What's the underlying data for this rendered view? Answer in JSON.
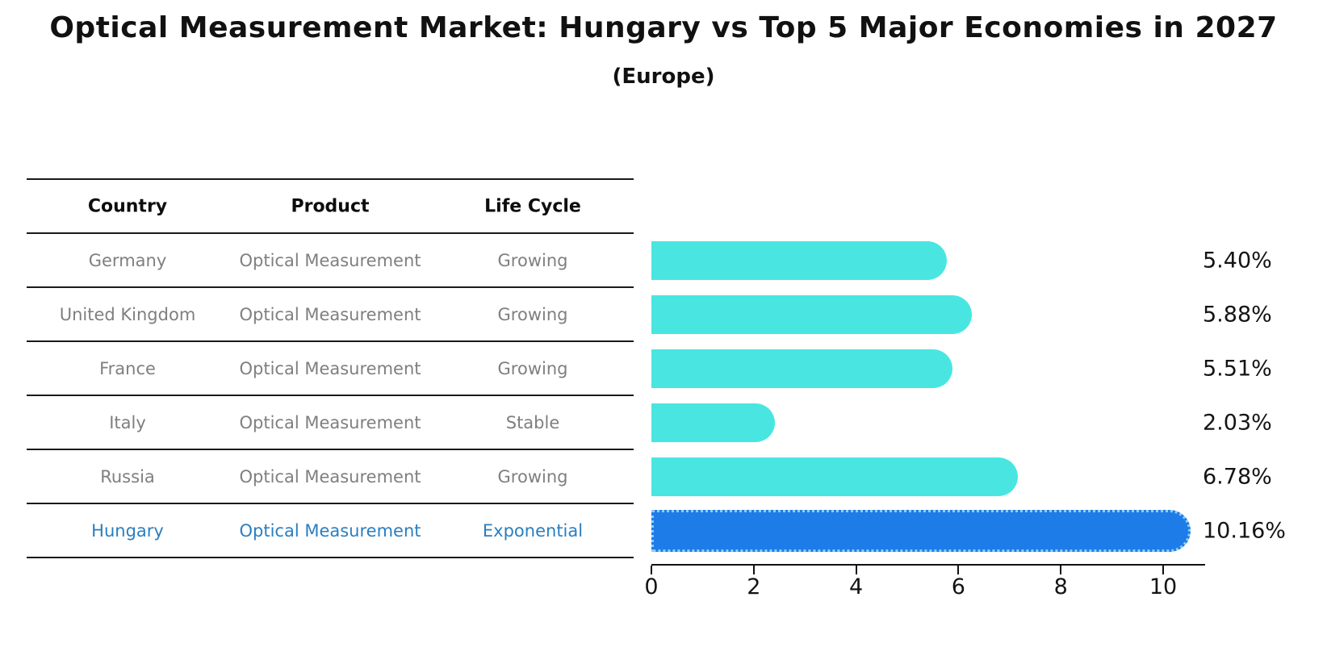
{
  "title": "Optical Measurement Market: Hungary vs Top 5 Major Economies in 2027",
  "subtitle": "(Europe)",
  "table": {
    "columns": [
      "Country",
      "Product",
      "Life Cycle"
    ],
    "rows": [
      {
        "country": "Germany",
        "product": "Optical Measurement",
        "life_cycle": "Growing",
        "highlight": false
      },
      {
        "country": "United Kingdom",
        "product": "Optical Measurement",
        "life_cycle": "Growing",
        "highlight": false
      },
      {
        "country": "France",
        "product": "Optical Measurement",
        "life_cycle": "Growing",
        "highlight": false
      },
      {
        "country": "Italy",
        "product": "Optical Measurement",
        "life_cycle": "Stable",
        "highlight": false
      },
      {
        "country": "Russia",
        "product": "Optical Measurement",
        "life_cycle": "Growing",
        "highlight": false
      },
      {
        "country": "Hungary",
        "product": "Optical Measurement",
        "life_cycle": "Exponential",
        "highlight": true
      }
    ]
  },
  "chart_data": {
    "type": "bar",
    "orientation": "horizontal",
    "title": "Optical Measurement Market: Hungary vs Top 5 Major Economies in 2027",
    "subtitle": "(Europe)",
    "categories": [
      "Germany",
      "United Kingdom",
      "France",
      "Italy",
      "Russia",
      "Hungary"
    ],
    "values": [
      5.4,
      5.88,
      5.51,
      2.03,
      6.78,
      10.16
    ],
    "value_labels": [
      "5.40%",
      "5.88%",
      "5.51%",
      "2.03%",
      "6.78%",
      "10.16%"
    ],
    "xlabel": "",
    "ylabel": "",
    "xlim": [
      0,
      10.8
    ],
    "x_ticks": [
      "0",
      "2",
      "4",
      "6",
      "8",
      "10"
    ],
    "grid": false,
    "legend": false,
    "highlight_index": 5,
    "bar_color": "#49e6e1",
    "highlight_bar_color": "#1e7ce8",
    "highlight_border_color": "#8ecdf2",
    "highlight_text_color": "#2a7ec0"
  }
}
